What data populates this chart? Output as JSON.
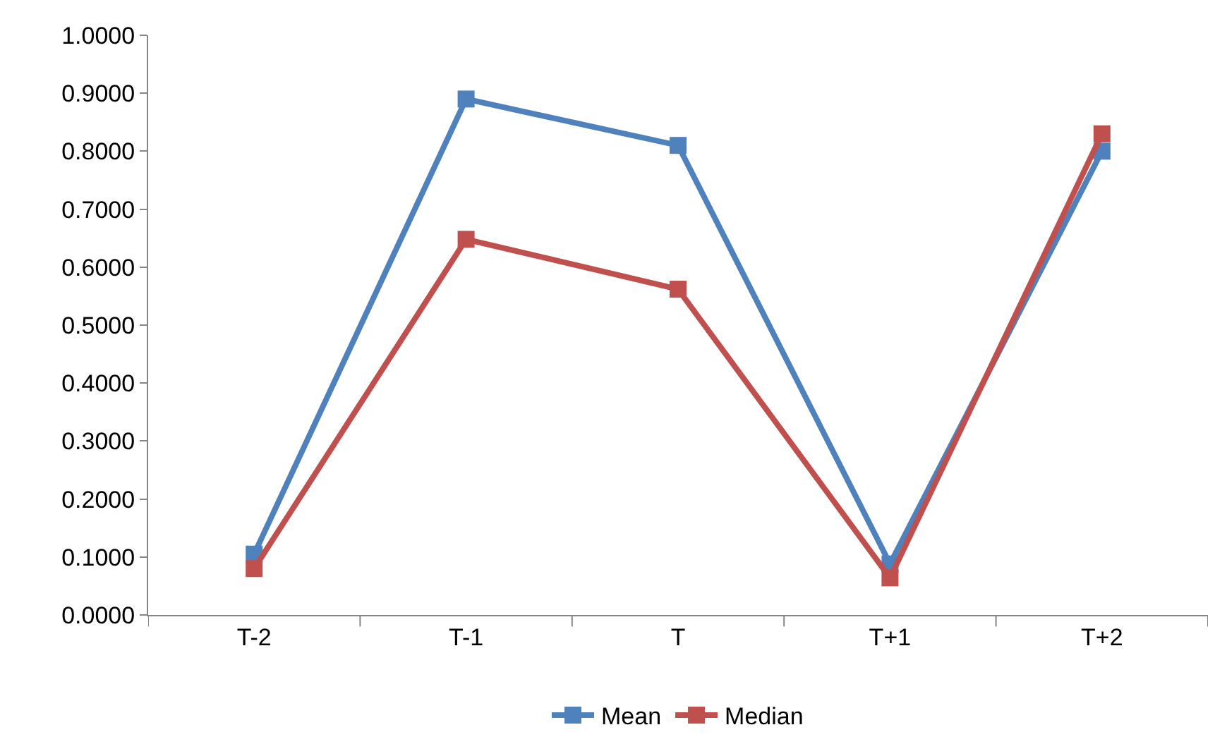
{
  "chart_data": {
    "type": "line",
    "categories": [
      "T-2",
      "T-1",
      "T",
      "T+1",
      "T+2"
    ],
    "series": [
      {
        "name": "Mean",
        "color": "#4f81bd",
        "values": [
          0.105,
          0.89,
          0.81,
          0.088,
          0.8
        ]
      },
      {
        "name": "Median",
        "color": "#c0504d",
        "values": [
          0.08,
          0.648,
          0.562,
          0.064,
          0.83
        ]
      }
    ],
    "ylim": [
      0,
      1
    ],
    "yticks": [
      {
        "value": 0,
        "label": "0.0000"
      },
      {
        "value": 0.1,
        "label": "0.1000"
      },
      {
        "value": 0.2,
        "label": "0.2000"
      },
      {
        "value": 0.3,
        "label": "0.3000"
      },
      {
        "value": 0.4,
        "label": "0.4000"
      },
      {
        "value": 0.5,
        "label": "0.5000"
      },
      {
        "value": 0.6,
        "label": "0.6000"
      },
      {
        "value": 0.7,
        "label": "0.7000"
      },
      {
        "value": 0.8,
        "label": "0.8000"
      },
      {
        "value": 0.9,
        "label": "0.9000"
      },
      {
        "value": 1,
        "label": "1.0000"
      }
    ],
    "grid": false,
    "legend": "bottom",
    "marker": "square",
    "line_style": "solid"
  }
}
